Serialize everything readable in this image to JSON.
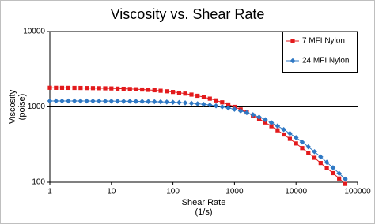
{
  "chart_data": {
    "type": "line",
    "title": "Viscosity vs. Shear Rate",
    "x_label": [
      "Shear Rate",
      "(1/s)"
    ],
    "y_label": [
      "Viscosity",
      "(poise)"
    ],
    "x_log": true,
    "y_log": true,
    "grid": true,
    "legend": "top-right",
    "xlim": [
      1,
      100000
    ],
    "ylim": [
      100,
      10000
    ],
    "xticks": [
      1,
      10,
      100,
      1000,
      10000,
      100000
    ],
    "yticks": [
      100,
      1000,
      10000
    ],
    "x": [
      1,
      1.26,
      1.58,
      2,
      2.51,
      3.16,
      3.98,
      5.01,
      6.31,
      7.94,
      10,
      12.6,
      15.8,
      20,
      25.1,
      31.6,
      39.8,
      50.1,
      63.1,
      79.4,
      100,
      126,
      158,
      200,
      251,
      316,
      398,
      501,
      631,
      794,
      1000,
      1259,
      1585,
      1995,
      2512,
      3162,
      3981,
      5012,
      6310,
      7943,
      10000,
      12589,
      15849,
      19953,
      25119,
      31623,
      39811,
      50119,
      63096
    ],
    "series": [
      {
        "name": "7 MFI Nylon",
        "color": "#e31a1c",
        "marker": "square",
        "values": [
          1792,
          1790,
          1789,
          1787,
          1784,
          1781,
          1777,
          1773,
          1768,
          1762,
          1756,
          1747,
          1738,
          1727,
          1713,
          1698,
          1680,
          1660,
          1635,
          1608,
          1576,
          1540,
          1499,
          1453,
          1402,
          1346,
          1285,
          1219,
          1149,
          1076,
          1000,
          923,
          845,
          768,
          693,
          621,
          553,
          489,
          430,
          376,
          327,
          284,
          245,
          211,
          180,
          154,
          132,
          112,
          95
        ]
      },
      {
        "name": "24 MFI Nylon",
        "color": "#2f78c4",
        "marker": "diamond",
        "values": [
          1199,
          1199,
          1199,
          1198,
          1198,
          1197,
          1197,
          1196,
          1195,
          1194,
          1193,
          1192,
          1190,
          1188,
          1185,
          1182,
          1178,
          1173,
          1167,
          1161,
          1152,
          1143,
          1131,
          1117,
          1100,
          1081,
          1058,
          1032,
          1002,
          967,
          929,
          885,
          838,
          786,
          732,
          675,
          617,
          558,
          500,
          444,
          391,
          341,
          295,
          254,
          217,
          184,
          156,
          131,
          110
        ]
      }
    ]
  }
}
